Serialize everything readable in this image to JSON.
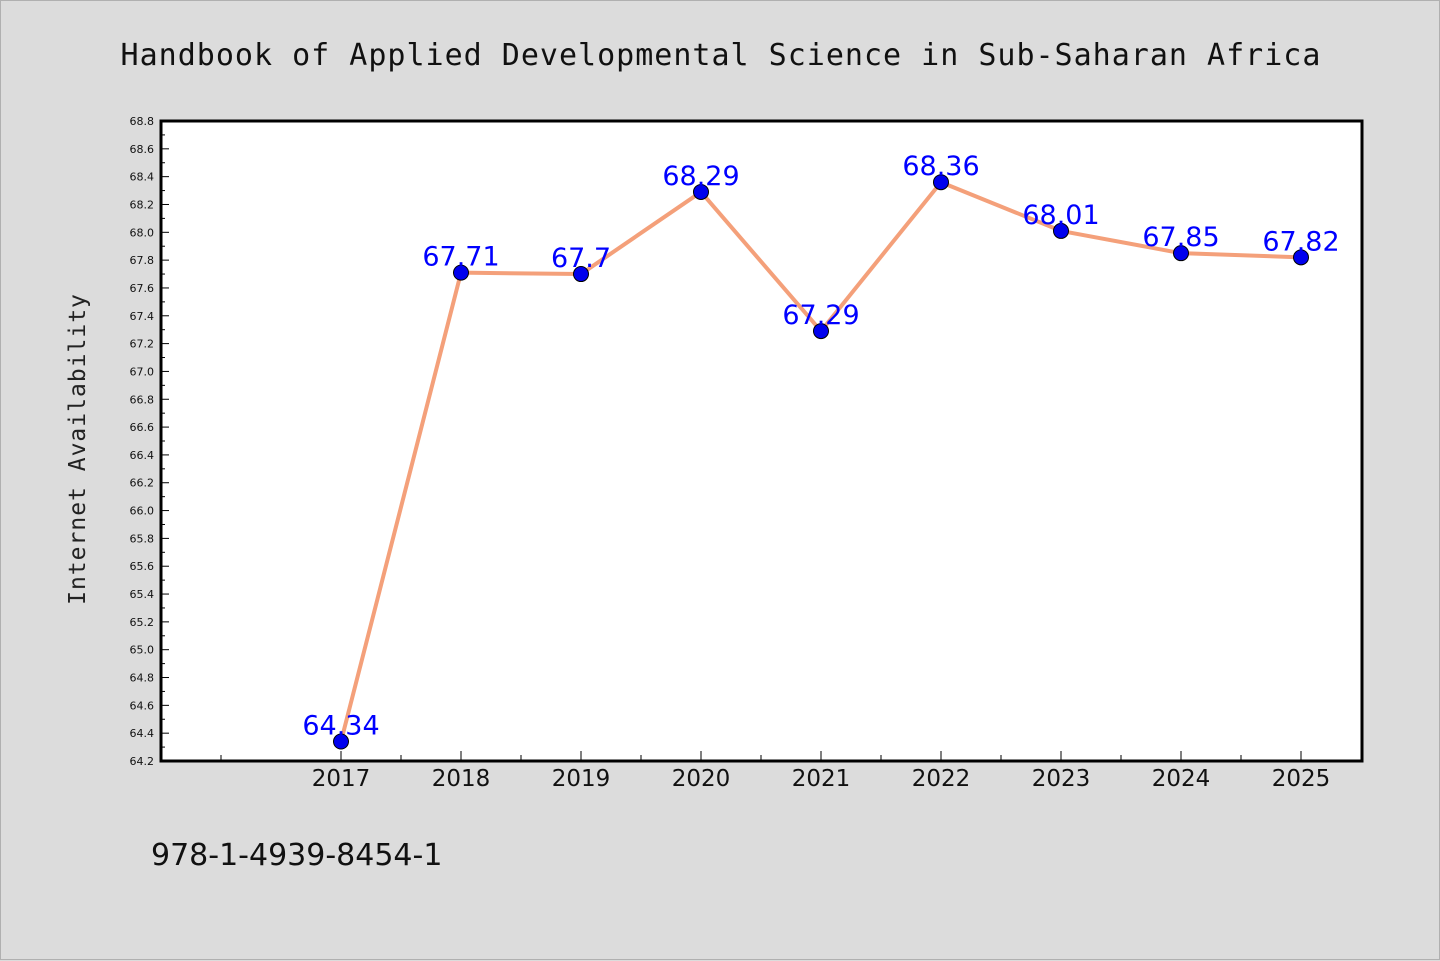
{
  "chart_data": {
    "type": "line",
    "title": "Handbook of Applied Developmental Science in Sub-Saharan Africa",
    "xlabel": "",
    "ylabel": "Internet Availability",
    "categories": [
      "2017",
      "2018",
      "2019",
      "2020",
      "2021",
      "2022",
      "2023",
      "2024",
      "2025"
    ],
    "series": [
      {
        "values": [
          64.34,
          67.71,
          67.7,
          68.29,
          67.29,
          68.36,
          68.01,
          67.85,
          67.82
        ],
        "data_labels": [
          "64.34",
          "67.71",
          "67.7",
          "68.29",
          "67.29",
          "68.36",
          "68.01",
          "67.85",
          "67.82"
        ]
      }
    ],
    "ylim": [
      64.2,
      68.8
    ],
    "yticks": [
      "64.2",
      "64.4",
      "64.6",
      "64.8",
      "65.0",
      "65.2",
      "65.4",
      "65.6",
      "65.8",
      "66.0",
      "66.2",
      "66.4",
      "66.6",
      "66.8",
      "67.0",
      "67.2",
      "67.4",
      "67.6",
      "67.8",
      "68.0",
      "68.2",
      "68.4",
      "68.6",
      "68.8"
    ],
    "grid": false,
    "legend": "none",
    "colors": {
      "line": "#f4a07a",
      "marker": "#0000ee",
      "data_label": "#0000ff",
      "background": "#dcdcdc",
      "plot_background": "#ffffff"
    }
  },
  "footer": {
    "isbn": "978-1-4939-8454-1"
  }
}
